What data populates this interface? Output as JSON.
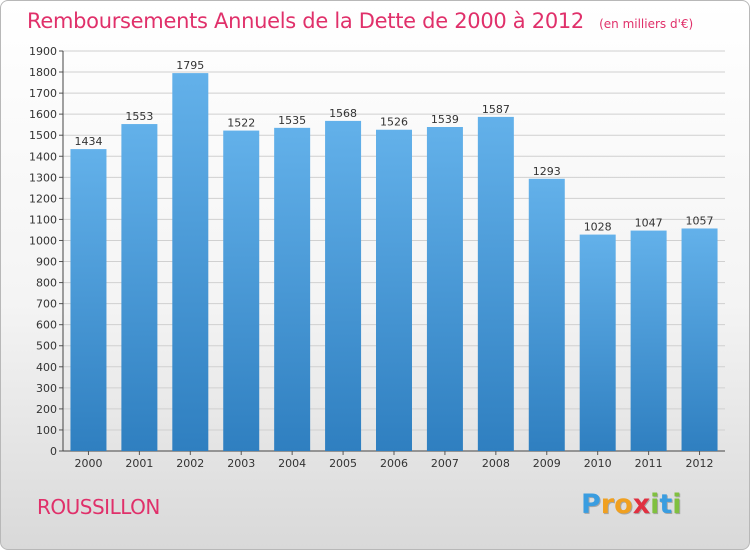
{
  "title": "Remboursements Annuels de la Dette de 2000 à 2012",
  "unit_note": "(en milliers d'€)",
  "location": "ROUSSILLON",
  "logo": {
    "letters": [
      "P",
      "r",
      "o",
      "x",
      "i",
      "t",
      "i"
    ],
    "colors": [
      "#3a9de0",
      "#f0a020",
      "#f0a020",
      "#e03040",
      "#80c040",
      "#3a9de0",
      "#80c040"
    ]
  },
  "colors": {
    "bar_top": "#63b1ea",
    "bar_bottom": "#2f7fc0",
    "accent": "#e0306a",
    "grid": "#d0d0d0"
  },
  "chart_data": {
    "type": "bar",
    "categories": [
      "2000",
      "2001",
      "2002",
      "2003",
      "2004",
      "2005",
      "2006",
      "2007",
      "2008",
      "2009",
      "2010",
      "2011",
      "2012"
    ],
    "values": [
      1434,
      1553,
      1795,
      1522,
      1535,
      1568,
      1526,
      1539,
      1587,
      1293,
      1028,
      1047,
      1057
    ],
    "ylim": [
      0,
      1900
    ],
    "yticks": [
      0,
      100,
      200,
      300,
      400,
      500,
      600,
      700,
      800,
      900,
      1000,
      1100,
      1200,
      1300,
      1400,
      1500,
      1600,
      1700,
      1800,
      1900
    ],
    "grid": true
  }
}
